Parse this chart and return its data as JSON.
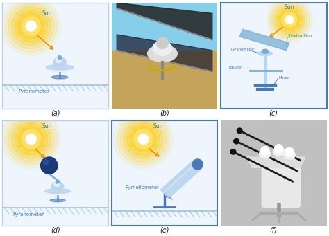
{
  "panels": [
    {
      "label": "(a)",
      "bg": "#eef5fc",
      "border": "#b8d0ea",
      "lw": 1.0
    },
    {
      "label": "(b)",
      "bg": "#999999",
      "border": "#cccccc",
      "lw": 0
    },
    {
      "label": "(c)",
      "bg": "#eef5fc",
      "border": "#4a7ab5",
      "lw": 1.5
    },
    {
      "label": "(d)",
      "bg": "#eef5fc",
      "border": "#b8d0ea",
      "lw": 1.0
    },
    {
      "label": "(e)",
      "bg": "#eef5fc",
      "border": "#4a7ab5",
      "lw": 1.5
    },
    {
      "label": "(f)",
      "bg": "#c8c8c8",
      "border": "#cccccc",
      "lw": 0
    }
  ],
  "panel_labels": [
    "(a)",
    "(b)",
    "(c)",
    "(d)",
    "(e)",
    "(f)"
  ],
  "sun_color_inner": "#ffffff",
  "sun_color_mid": "#ffe066",
  "sun_color_outer": "#ffcc00",
  "sun_swirl_color": "#ffdd44",
  "ray_color": "#e8950a",
  "device_color_dark": "#4a7ab5",
  "device_color_mid": "#7aadd4",
  "device_color_light": "#b8d4ee",
  "device_white": "#e8f0f8",
  "ground_color": "#90b8d8",
  "text_color": "#4a7ab5",
  "shadow_ring_color": "#4a7ab5",
  "label_fontsize": 7,
  "shadow_ring_text_color": "#3a9a6a"
}
